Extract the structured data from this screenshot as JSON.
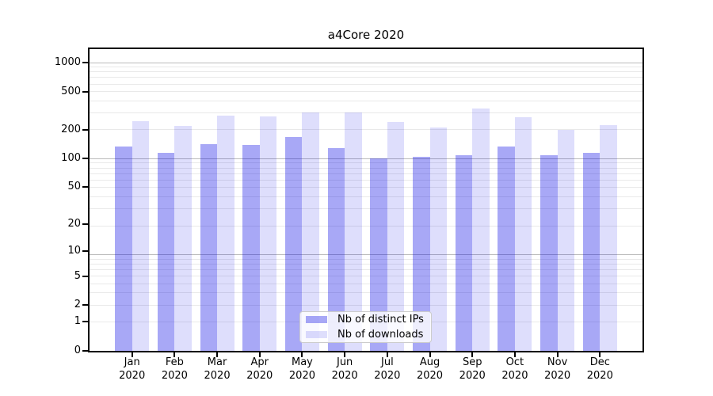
{
  "chart_data": {
    "type": "bar",
    "title": "a4Core 2020",
    "categories": [
      "Jan",
      "Feb",
      "Mar",
      "Apr",
      "May",
      "Jun",
      "Jul",
      "Aug",
      "Sep",
      "Oct",
      "Nov",
      "Dec"
    ],
    "x_tick_second_line": "2020",
    "series": [
      {
        "name": "Nb of distinct IPs",
        "values": [
          132,
          115,
          140,
          139,
          167,
          128,
          100,
          104,
          108,
          133,
          108,
          115
        ],
        "base_color": "#0000e6",
        "alpha": 0.34
      },
      {
        "name": "Nb of downloads",
        "values": [
          245,
          218,
          278,
          272,
          302,
          304,
          241,
          210,
          332,
          270,
          198,
          223
        ],
        "base_color": "#0000e6",
        "alpha": 0.13
      }
    ],
    "y_scale": "log10(1+v)",
    "ylim": [
      0,
      1436
    ],
    "y_ticks": [
      0,
      1,
      2,
      5,
      10,
      20,
      50,
      100,
      200,
      500,
      1000
    ],
    "xlabel": "",
    "ylabel": "",
    "grid": {
      "show": true,
      "major_color": "#bbbbbb",
      "minor_color": "#e9e9e9"
    },
    "legend": {
      "position": "lower-center"
    },
    "colors": {
      "axis": "#000000",
      "background": "#ffffff",
      "legend_border": "#cccccc"
    }
  }
}
